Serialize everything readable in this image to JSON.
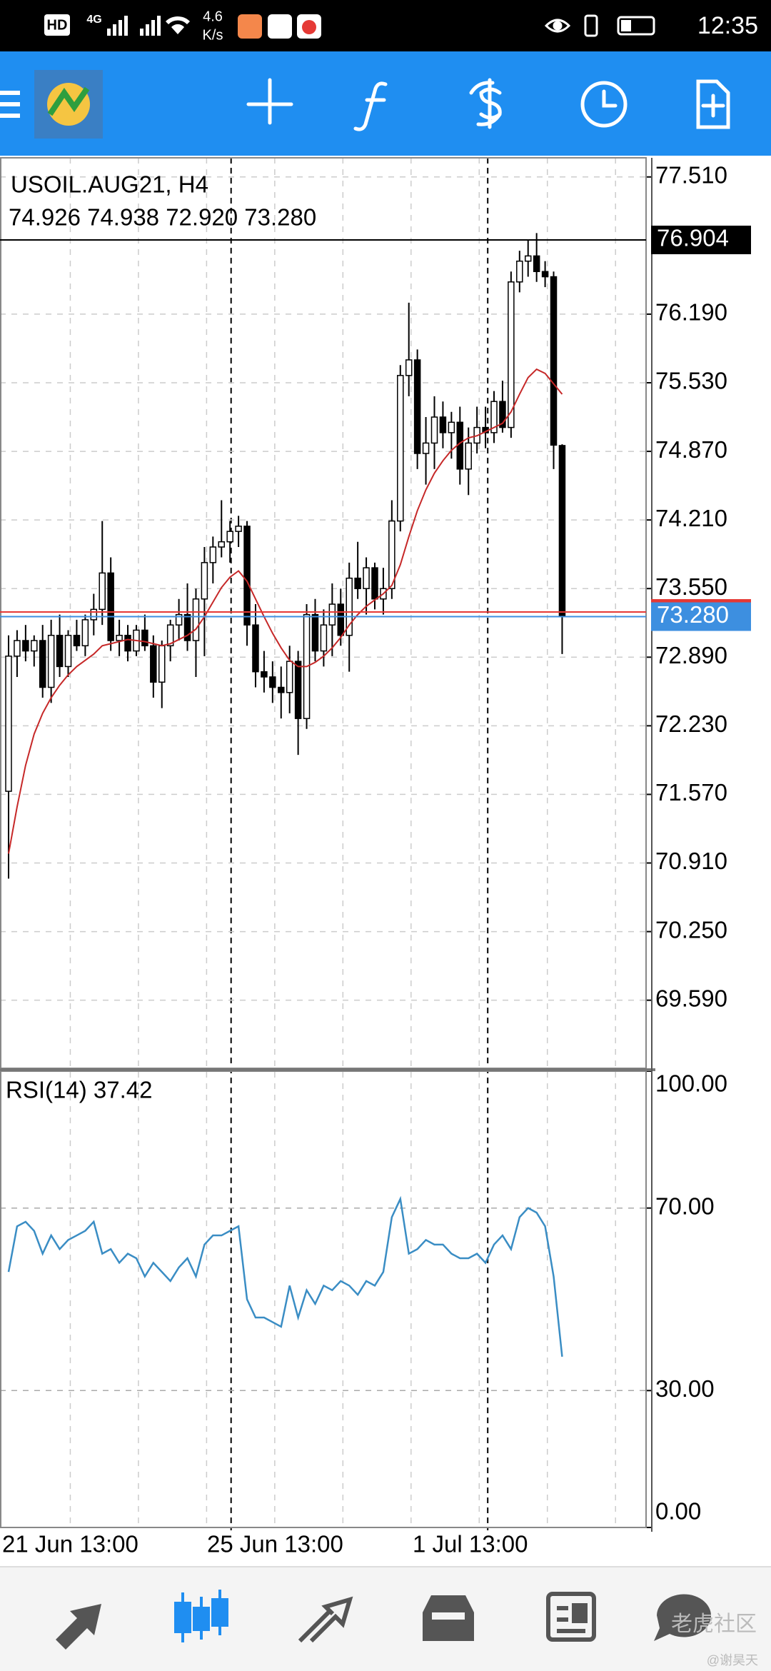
{
  "status_bar": {
    "hd": "HD",
    "network": "4G",
    "speed": "4.6",
    "speed_unit": "K/s",
    "time": "12:35"
  },
  "chart_data": {
    "type": "candlestick",
    "title": "USOIL.AUG21, H4",
    "ohlc_text": "74.926 74.938 72.920 73.280",
    "up_color": "#ffffff",
    "down_color": "#000000",
    "open": [
      71.6,
      72.9,
      73.05,
      72.95,
      73.05,
      72.6,
      73.1,
      72.8,
      73.1,
      73.0,
      73.25,
      73.35,
      73.7,
      73.05,
      73.1,
      72.95,
      73.15,
      73.0,
      72.65,
      73.0,
      73.2,
      73.3,
      73.05,
      73.45,
      73.8,
      73.95,
      74.0,
      74.1,
      74.15,
      73.2,
      72.75,
      72.7,
      72.6,
      72.55,
      72.85,
      72.3,
      73.3,
      72.95,
      73.2,
      73.4,
      73.1,
      73.65,
      73.55,
      73.75,
      73.45,
      73.55,
      74.2,
      75.6,
      75.75,
      74.85,
      74.95,
      75.2,
      75.05,
      75.15,
      74.7,
      74.95,
      75.1,
      75.05,
      75.35,
      75.1,
      76.5,
      76.7,
      76.75,
      76.6,
      76.55,
      74.926
    ],
    "high": [
      73.1,
      73.15,
      73.2,
      73.1,
      73.2,
      73.25,
      73.3,
      73.15,
      73.25,
      73.3,
      73.5,
      74.2,
      73.85,
      73.25,
      73.2,
      73.2,
      73.3,
      73.1,
      73.05,
      73.25,
      73.45,
      73.6,
      73.55,
      73.95,
      74.05,
      74.4,
      74.2,
      74.25,
      74.2,
      73.4,
      72.95,
      72.85,
      72.8,
      73.0,
      72.95,
      73.4,
      73.45,
      73.35,
      73.6,
      73.55,
      73.8,
      74.0,
      73.85,
      73.8,
      73.75,
      74.4,
      75.7,
      76.3,
      75.85,
      75.2,
      75.4,
      75.35,
      75.25,
      75.3,
      75.1,
      75.3,
      75.3,
      75.45,
      75.55,
      76.6,
      76.8,
      76.9,
      76.97,
      76.7,
      76.6,
      74.938
    ],
    "low": [
      70.76,
      72.7,
      72.85,
      72.8,
      72.5,
      72.45,
      72.7,
      72.7,
      72.95,
      72.9,
      73.1,
      73.2,
      72.95,
      72.9,
      72.85,
      72.9,
      72.95,
      72.5,
      72.4,
      72.85,
      73.05,
      72.95,
      72.7,
      72.9,
      73.6,
      73.85,
      73.8,
      73.95,
      73.0,
      72.6,
      72.55,
      72.45,
      72.3,
      72.35,
      71.95,
      72.2,
      72.85,
      72.8,
      72.9,
      73.0,
      72.75,
      73.45,
      73.3,
      73.35,
      73.3,
      73.45,
      74.1,
      75.4,
      74.7,
      74.55,
      74.7,
      74.9,
      74.8,
      74.55,
      74.45,
      74.85,
      74.9,
      74.95,
      75.05,
      75.0,
      76.4,
      76.55,
      76.5,
      76.45,
      74.7,
      72.92
    ],
    "close": [
      72.9,
      73.05,
      72.95,
      73.05,
      72.6,
      73.1,
      72.8,
      73.1,
      73.0,
      73.25,
      73.35,
      73.7,
      73.05,
      73.1,
      72.95,
      73.15,
      73.0,
      72.65,
      73.0,
      73.2,
      73.3,
      73.05,
      73.45,
      73.8,
      73.95,
      74.0,
      74.1,
      74.15,
      73.2,
      72.75,
      72.7,
      72.6,
      72.55,
      72.85,
      72.3,
      73.3,
      72.95,
      73.2,
      73.4,
      73.1,
      73.65,
      73.55,
      73.75,
      73.45,
      73.55,
      74.2,
      75.6,
      75.75,
      74.85,
      74.95,
      75.2,
      75.05,
      75.15,
      74.7,
      74.95,
      75.1,
      75.05,
      75.35,
      75.1,
      76.5,
      76.7,
      76.75,
      76.6,
      76.55,
      74.93,
      73.28
    ],
    "ma": {
      "color": "#c62828",
      "values": [
        71.0,
        71.45,
        71.85,
        72.15,
        72.35,
        72.5,
        72.62,
        72.72,
        72.8,
        72.86,
        72.92,
        73.0,
        73.02,
        73.04,
        73.06,
        73.05,
        73.04,
        73.02,
        73.0,
        73.02,
        73.06,
        73.1,
        73.16,
        73.28,
        73.42,
        73.56,
        73.66,
        73.72,
        73.62,
        73.45,
        73.28,
        73.12,
        72.98,
        72.86,
        72.8,
        72.8,
        72.84,
        72.9,
        72.98,
        73.08,
        73.2,
        73.3,
        73.38,
        73.44,
        73.5,
        73.58,
        73.78,
        74.05,
        74.3,
        74.5,
        74.66,
        74.78,
        74.88,
        74.95,
        75.0,
        75.02,
        75.06,
        75.1,
        75.14,
        75.25,
        75.42,
        75.58,
        75.66,
        75.62,
        75.52,
        75.42
      ]
    },
    "ylim": [
      68.935,
      77.694
    ],
    "yticks": [
      {
        "value": 77.51,
        "label": "77.510"
      },
      {
        "value": 76.19,
        "label": "76.190"
      },
      {
        "value": 75.53,
        "label": "75.530"
      },
      {
        "value": 74.87,
        "label": "74.870"
      },
      {
        "value": 74.21,
        "label": "74.210"
      },
      {
        "value": 73.55,
        "label": "73.550"
      },
      {
        "value": 72.89,
        "label": "72.890"
      },
      {
        "value": 72.23,
        "label": "72.230"
      },
      {
        "value": 71.57,
        "label": "71.570"
      },
      {
        "value": 70.91,
        "label": "70.910"
      },
      {
        "value": 70.25,
        "label": "70.250"
      },
      {
        "value": 69.59,
        "label": "69.590"
      }
    ],
    "price_lines": [
      {
        "value": 76.904,
        "label": "76.904",
        "color": "#000000"
      },
      {
        "value": 73.325,
        "color": "#e53935"
      },
      {
        "value": 73.28,
        "label": "73.280",
        "color": "#3d8fe0"
      }
    ],
    "x_labels": [
      "21 Jun 13:00",
      "25 Jun 13:00",
      "1 Jul 13:00"
    ],
    "grid": true
  },
  "rsi_data": {
    "type": "line",
    "title": "RSI(14) 37.42",
    "color": "#3a8dc4",
    "values": [
      56,
      66,
      67,
      65,
      60,
      64,
      61,
      63,
      64,
      65,
      67,
      60,
      61,
      58,
      60,
      59,
      55,
      58,
      56,
      54,
      57,
      59,
      55,
      62,
      64,
      64,
      65,
      66,
      50,
      46,
      46,
      45,
      44,
      53,
      46,
      52,
      49,
      53,
      52,
      54,
      53,
      51,
      54,
      53,
      56,
      68,
      72,
      60,
      61,
      63,
      62,
      62,
      60,
      59,
      59,
      60,
      58,
      62,
      64,
      61,
      68,
      70,
      69,
      66,
      55,
      37.42
    ],
    "ylim": [
      0,
      100
    ],
    "yticks": [
      {
        "value": 100,
        "label": "100.00"
      },
      {
        "value": 70,
        "label": "70.00"
      },
      {
        "value": 30,
        "label": "30.00"
      },
      {
        "value": 0,
        "label": "0.00"
      }
    ],
    "grid": true
  },
  "watermark": {
    "brand": "老虎社区",
    "author": "@谢昊天"
  }
}
